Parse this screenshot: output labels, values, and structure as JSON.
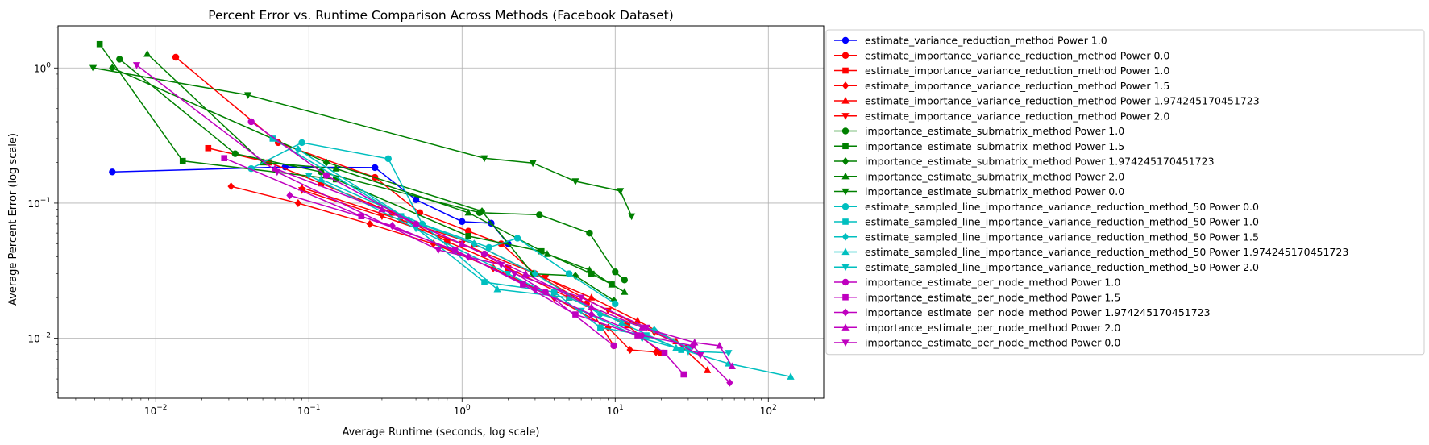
{
  "chart_data": {
    "type": "line",
    "title": "Percent Error vs. Runtime Comparison Across Methods (Facebook Dataset)",
    "xlabel": "Average Runtime (seconds, log scale)",
    "ylabel": "Average Percent Error (log scale)",
    "xscale": "log",
    "yscale": "log",
    "xlim": [
      0.0023,
      230
    ],
    "ylim": [
      0.0036,
      2.05
    ],
    "x_ticks": [
      {
        "value": 0.01,
        "base": "10",
        "exp": "−2"
      },
      {
        "value": 0.1,
        "base": "10",
        "exp": "−1"
      },
      {
        "value": 1,
        "base": "10",
        "exp": "0"
      },
      {
        "value": 10,
        "base": "10",
        "exp": "1"
      },
      {
        "value": 100,
        "base": "10",
        "exp": "2"
      }
    ],
    "y_ticks": [
      {
        "value": 0.01,
        "base": "10",
        "exp": "−2"
      },
      {
        "value": 0.1,
        "base": "10",
        "exp": "−1"
      },
      {
        "value": 1,
        "base": "10",
        "exp": "0"
      }
    ],
    "grid": true,
    "legend_position": "outside-right",
    "series": [
      {
        "name": "estimate_variance_reduction_method Power 1.0",
        "color": "#0000ff",
        "marker": "circle",
        "points": [
          [
            0.0052,
            0.17
          ],
          [
            0.07,
            0.185
          ],
          [
            0.27,
            0.183
          ],
          [
            0.5,
            0.106
          ],
          [
            1.0,
            0.073
          ],
          [
            1.55,
            0.071
          ],
          [
            2.0,
            0.05
          ]
        ]
      },
      {
        "name": "estimate_importance_variance_reduction_method Power 0.0",
        "color": "#ff0000",
        "marker": "circle",
        "points": [
          [
            0.0135,
            1.2
          ],
          [
            0.063,
            0.28
          ],
          [
            0.27,
            0.155
          ],
          [
            0.53,
            0.085
          ],
          [
            1.1,
            0.062
          ],
          [
            1.8,
            0.05
          ],
          [
            3.0,
            0.03
          ],
          [
            6.5,
            0.018
          ],
          [
            9.8,
            0.0088
          ]
        ]
      },
      {
        "name": "estimate_importance_variance_reduction_method Power 1.0",
        "color": "#ff0000",
        "marker": "square",
        "points": [
          [
            0.022,
            0.255
          ],
          [
            0.055,
            0.2
          ],
          [
            0.12,
            0.14
          ],
          [
            0.35,
            0.085
          ],
          [
            0.8,
            0.052
          ],
          [
            2.0,
            0.033
          ],
          [
            5.0,
            0.02
          ],
          [
            12.0,
            0.0125
          ],
          [
            20.0,
            0.0078
          ]
        ]
      },
      {
        "name": "estimate_importance_variance_reduction_method Power 1.5",
        "color": "#ff0000",
        "marker": "diamond",
        "points": [
          [
            0.031,
            0.133
          ],
          [
            0.085,
            0.1
          ],
          [
            0.25,
            0.07
          ],
          [
            0.65,
            0.05
          ],
          [
            1.6,
            0.033
          ],
          [
            4.0,
            0.02
          ],
          [
            9.0,
            0.012
          ],
          [
            12.5,
            0.0082
          ],
          [
            18.5,
            0.0079
          ]
        ]
      },
      {
        "name": "estimate_importance_variance_reduction_method Power 1.974245170451723",
        "color": "#ff0000",
        "marker": "triangle-up",
        "points": [
          [
            0.09,
            0.13
          ],
          [
            0.4,
            0.075
          ],
          [
            1.2,
            0.05
          ],
          [
            3.0,
            0.03
          ],
          [
            7.0,
            0.02
          ],
          [
            14.0,
            0.0135
          ],
          [
            25.0,
            0.0095
          ],
          [
            40.0,
            0.0058
          ]
        ]
      },
      {
        "name": "estimate_importance_variance_reduction_method Power 2.0",
        "color": "#ff0000",
        "marker": "triangle-down",
        "points": [
          [
            0.09,
            0.125
          ],
          [
            0.3,
            0.08
          ],
          [
            1.0,
            0.05
          ],
          [
            3.5,
            0.028
          ],
          [
            9.0,
            0.016
          ],
          [
            18.0,
            0.011
          ],
          [
            30.0,
            0.0085
          ]
        ]
      },
      {
        "name": "importance_estimate_submatrix_method Power 1.0",
        "color": "#008000",
        "marker": "circle",
        "points": [
          [
            0.0058,
            1.16
          ],
          [
            0.033,
            0.232
          ],
          [
            0.12,
            0.17
          ],
          [
            1.3,
            0.085
          ],
          [
            3.2,
            0.082
          ],
          [
            6.8,
            0.06
          ],
          [
            10.0,
            0.031
          ],
          [
            11.5,
            0.027
          ]
        ]
      },
      {
        "name": "importance_estimate_submatrix_method Power 1.5",
        "color": "#008000",
        "marker": "square",
        "points": [
          [
            0.0043,
            1.5
          ],
          [
            0.015,
            0.205
          ],
          [
            0.15,
            0.15
          ],
          [
            1.1,
            0.057
          ],
          [
            3.3,
            0.044
          ],
          [
            7.0,
            0.03
          ],
          [
            9.5,
            0.025
          ]
        ]
      },
      {
        "name": "importance_estimate_submatrix_method Power 1.974245170451723",
        "color": "#008000",
        "marker": "diamond",
        "points": [
          [
            0.0052,
            1.0
          ],
          [
            0.13,
            0.2
          ],
          [
            1.35,
            0.087
          ],
          [
            2.9,
            0.03
          ],
          [
            5.5,
            0.029
          ],
          [
            9.8,
            0.019
          ]
        ]
      },
      {
        "name": "importance_estimate_submatrix_method Power 2.0",
        "color": "#008000",
        "marker": "triangle-up",
        "points": [
          [
            0.0088,
            1.27
          ],
          [
            0.05,
            0.2
          ],
          [
            0.15,
            0.18
          ],
          [
            1.1,
            0.085
          ],
          [
            3.6,
            0.042
          ],
          [
            6.8,
            0.032
          ],
          [
            9.5,
            0.025
          ],
          [
            11.5,
            0.022
          ]
        ]
      },
      {
        "name": "importance_estimate_submatrix_method Power 0.0",
        "color": "#008000",
        "marker": "triangle-down",
        "points": [
          [
            0.0039,
            1.0
          ],
          [
            0.04,
            0.63
          ],
          [
            1.4,
            0.215
          ],
          [
            2.9,
            0.198
          ],
          [
            5.5,
            0.145
          ],
          [
            10.8,
            0.123
          ],
          [
            12.8,
            0.08
          ]
        ]
      },
      {
        "name": "estimate_sampled_line_importance_variance_reduction_method_50 Power 0.0",
        "color": "#00bfbf",
        "marker": "circle",
        "points": [
          [
            0.042,
            0.18
          ],
          [
            0.09,
            0.28
          ],
          [
            0.33,
            0.213
          ],
          [
            0.55,
            0.07
          ],
          [
            1.5,
            0.047
          ],
          [
            2.3,
            0.055
          ],
          [
            5.0,
            0.03
          ],
          [
            10.0,
            0.018
          ]
        ]
      },
      {
        "name": "estimate_sampled_line_importance_variance_reduction_method_50 Power 1.0",
        "color": "#00bfbf",
        "marker": "square",
        "points": [
          [
            0.058,
            0.3
          ],
          [
            0.4,
            0.08
          ],
          [
            1.4,
            0.026
          ],
          [
            4.0,
            0.022
          ],
          [
            8.0,
            0.012
          ],
          [
            16.0,
            0.0105
          ],
          [
            27.0,
            0.0082
          ]
        ]
      },
      {
        "name": "estimate_sampled_line_importance_variance_reduction_method_50 Power 1.5",
        "color": "#00bfbf",
        "marker": "diamond",
        "points": [
          [
            0.085,
            0.25
          ],
          [
            0.45,
            0.075
          ],
          [
            1.2,
            0.05
          ],
          [
            3.0,
            0.03
          ],
          [
            8.0,
            0.015
          ],
          [
            18.0,
            0.0115
          ],
          [
            30.0,
            0.0085
          ]
        ]
      },
      {
        "name": "estimate_sampled_line_importance_variance_reduction_method_50 Power 1.974245170451723",
        "color": "#00bfbf",
        "marker": "triangle-up",
        "points": [
          [
            0.12,
            0.15
          ],
          [
            0.55,
            0.07
          ],
          [
            1.7,
            0.023
          ],
          [
            5.0,
            0.02
          ],
          [
            11.0,
            0.013
          ],
          [
            25.0,
            0.0085
          ],
          [
            55.0,
            0.0065
          ],
          [
            140.0,
            0.0052
          ]
        ]
      },
      {
        "name": "estimate_sampled_line_importance_variance_reduction_method_50 Power 2.0",
        "color": "#00bfbf",
        "marker": "triangle-down",
        "points": [
          [
            0.1,
            0.16
          ],
          [
            0.5,
            0.065
          ],
          [
            2.0,
            0.03
          ],
          [
            6.0,
            0.016
          ],
          [
            15.0,
            0.01
          ],
          [
            30.0,
            0.008
          ],
          [
            55.0,
            0.0078
          ]
        ]
      },
      {
        "name": "importance_estimate_per_node_method Power 1.0",
        "color": "#bf00bf",
        "marker": "circle",
        "points": [
          [
            0.042,
            0.4
          ],
          [
            0.13,
            0.16
          ],
          [
            0.5,
            0.07
          ],
          [
            1.4,
            0.042
          ],
          [
            3.5,
            0.022
          ],
          [
            9.8,
            0.0088
          ]
        ]
      },
      {
        "name": "importance_estimate_per_node_method Power 1.5",
        "color": "#bf00bf",
        "marker": "square",
        "points": [
          [
            0.028,
            0.215
          ],
          [
            0.22,
            0.08
          ],
          [
            0.9,
            0.045
          ],
          [
            2.5,
            0.025
          ],
          [
            5.5,
            0.015
          ],
          [
            14.0,
            0.0105
          ],
          [
            21.0,
            0.0078
          ],
          [
            28.0,
            0.0054
          ]
        ]
      },
      {
        "name": "importance_estimate_per_node_method Power 1.974245170451723",
        "color": "#bf00bf",
        "marker": "diamond",
        "points": [
          [
            0.075,
            0.114
          ],
          [
            0.35,
            0.068
          ],
          [
            1.1,
            0.04
          ],
          [
            3.0,
            0.023
          ],
          [
            7.0,
            0.015
          ],
          [
            15.0,
            0.0105
          ],
          [
            32.0,
            0.0088
          ],
          [
            56.0,
            0.0047
          ]
        ]
      },
      {
        "name": "importance_estimate_per_node_method Power 2.0",
        "color": "#bf00bf",
        "marker": "triangle-up",
        "points": [
          [
            0.06,
            0.18
          ],
          [
            0.3,
            0.09
          ],
          [
            1.0,
            0.05
          ],
          [
            2.6,
            0.03
          ],
          [
            7.0,
            0.017
          ],
          [
            15.0,
            0.012
          ],
          [
            33.0,
            0.0093
          ],
          [
            48.0,
            0.0088
          ],
          [
            58.0,
            0.0062
          ]
        ]
      },
      {
        "name": "importance_estimate_per_node_method Power 0.0",
        "color": "#bf00bf",
        "marker": "triangle-down",
        "points": [
          [
            0.0075,
            1.05
          ],
          [
            0.062,
            0.17
          ],
          [
            0.7,
            0.045
          ],
          [
            1.8,
            0.035
          ],
          [
            2.2,
            0.03
          ],
          [
            6.0,
            0.02
          ],
          [
            16.0,
            0.012
          ],
          [
            36.0,
            0.0075
          ]
        ]
      }
    ]
  }
}
